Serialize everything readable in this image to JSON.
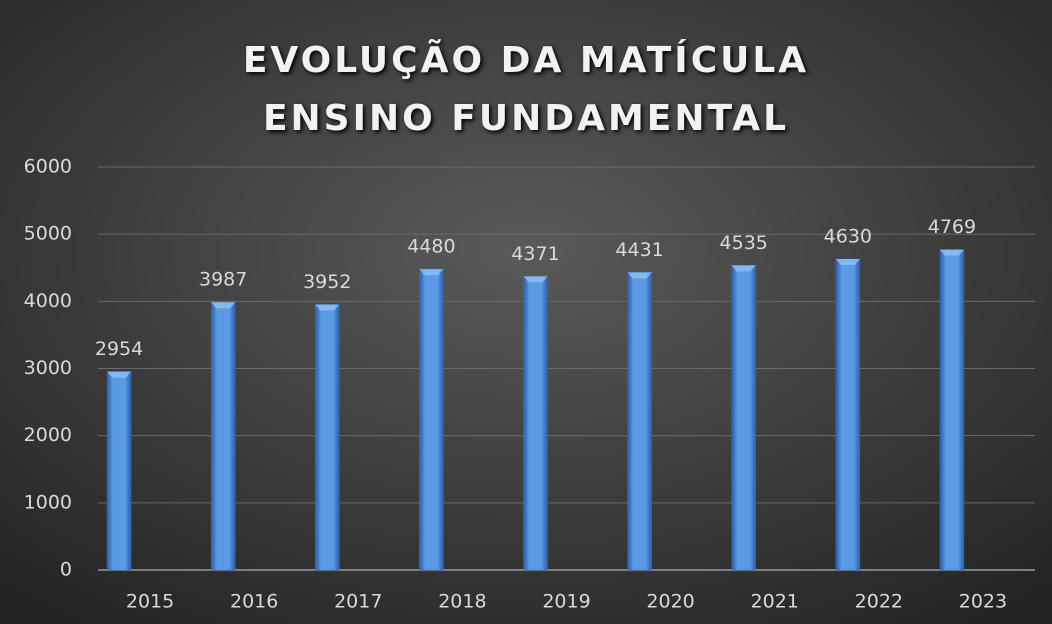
{
  "chart_data": {
    "type": "bar",
    "title": "EVOLUÇÃO DA MATÍCULA ENSINO FUNDAMENTAL",
    "categories": [
      "2015",
      "2016",
      "2017",
      "2018",
      "2019",
      "2020",
      "2021",
      "2022",
      "2023"
    ],
    "values": [
      2954,
      3987,
      3952,
      4480,
      4371,
      4431,
      4535,
      4630,
      4769
    ],
    "color": "#4a86d4",
    "ylim": [
      0,
      6000
    ],
    "yticks": [
      0,
      1000,
      2000,
      3000,
      4000,
      5000,
      6000
    ],
    "grid": true
  }
}
